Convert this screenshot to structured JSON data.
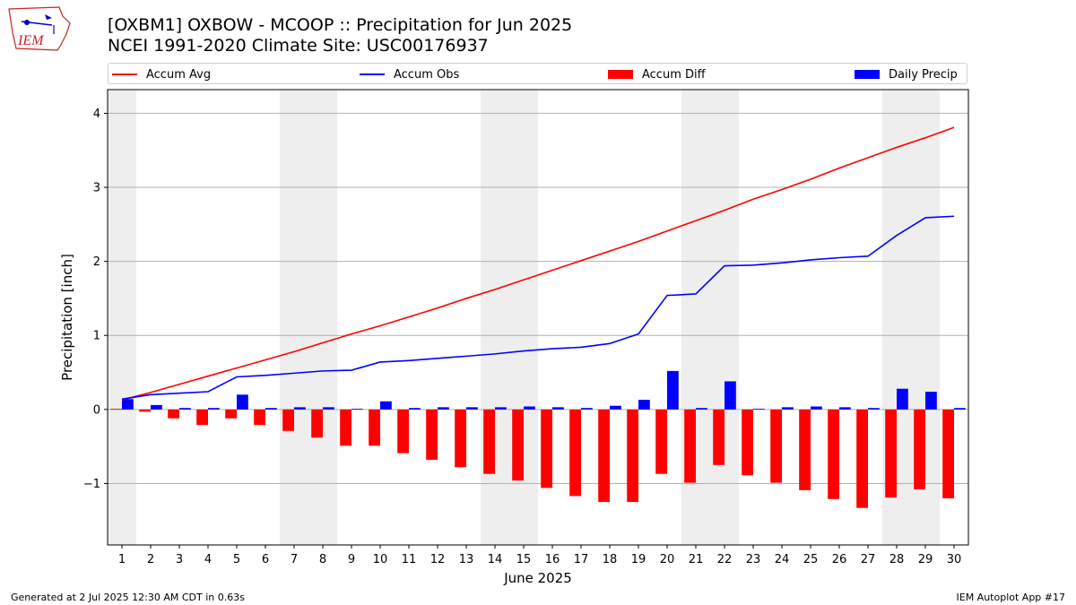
{
  "header": {
    "title_line1": "[OXBM1] OXBOW - MCOOP :: Precipitation for Jun 2025",
    "title_line2": "NCEI 1991-2020 Climate Site: USC00176937",
    "logo_text": "IEM"
  },
  "footer": {
    "left": "Generated at 2 Jul 2025 12:30 AM CDT in 0.63s",
    "right": "IEM Autoplot App #17"
  },
  "chart_data": {
    "type": "bar",
    "xlabel": "June 2025",
    "ylabel": "Precipitation [inch]",
    "ylim": [
      -1.83,
      4.32
    ],
    "xlim": [
      0.5,
      30.5
    ],
    "yticks": [
      -1,
      0,
      1,
      2,
      3,
      4
    ],
    "ytick_labels": [
      "−1",
      "0",
      "1",
      "2",
      "3",
      "4"
    ],
    "grid": "horizontal",
    "weekend_shading": [
      [
        0.5,
        1.5
      ],
      [
        6.5,
        8.5
      ],
      [
        13.5,
        15.5
      ],
      [
        20.5,
        22.5
      ],
      [
        27.5,
        29.5
      ]
    ],
    "categories": [
      "1",
      "2",
      "3",
      "4",
      "5",
      "6",
      "7",
      "8",
      "9",
      "10",
      "11",
      "12",
      "13",
      "14",
      "15",
      "16",
      "17",
      "18",
      "19",
      "20",
      "21",
      "22",
      "23",
      "24",
      "25",
      "26",
      "27",
      "28",
      "29",
      "30"
    ],
    "legend": [
      "Accum Avg",
      "Accum Obs",
      "Accum Diff",
      "Daily Precip"
    ],
    "colors": {
      "accum_avg": "#ff0000",
      "accum_obs": "#0000ff",
      "accum_diff": "#ff0000",
      "daily_precip": "#0000ff",
      "weekend": "#eeeeee",
      "grid": "#b0b0b0"
    },
    "series": [
      {
        "name": "Accum Avg",
        "kind": "line",
        "values": [
          0.13,
          0.23,
          0.34,
          0.45,
          0.56,
          0.67,
          0.78,
          0.9,
          1.02,
          1.13,
          1.25,
          1.37,
          1.5,
          1.62,
          1.75,
          1.88,
          2.01,
          2.14,
          2.27,
          2.41,
          2.55,
          2.69,
          2.84,
          2.97,
          3.11,
          3.26,
          3.4,
          3.54,
          3.67,
          3.81
        ]
      },
      {
        "name": "Accum Obs",
        "kind": "line",
        "values": [
          0.14,
          0.2,
          0.22,
          0.24,
          0.44,
          0.46,
          0.49,
          0.52,
          0.53,
          0.64,
          0.66,
          0.69,
          0.72,
          0.75,
          0.79,
          0.82,
          0.84,
          0.89,
          1.02,
          1.54,
          1.56,
          1.94,
          1.95,
          1.98,
          2.02,
          2.05,
          2.07,
          2.35,
          2.59,
          2.61
        ]
      },
      {
        "name": "Accum Diff",
        "kind": "bar",
        "values": [
          0.01,
          -0.03,
          -0.12,
          -0.21,
          -0.12,
          -0.21,
          -0.29,
          -0.38,
          -0.49,
          -0.49,
          -0.59,
          -0.68,
          -0.78,
          -0.87,
          -0.96,
          -1.06,
          -1.17,
          -1.25,
          -1.25,
          -0.87,
          -0.99,
          -0.75,
          -0.89,
          -0.99,
          -1.09,
          -1.21,
          -1.33,
          -1.19,
          -1.08,
          -1.2
        ]
      },
      {
        "name": "Daily Precip",
        "kind": "bar",
        "values": [
          0.14,
          0.06,
          0.02,
          0.02,
          0.2,
          0.02,
          0.03,
          0.03,
          0.01,
          0.11,
          0.02,
          0.03,
          0.03,
          0.03,
          0.04,
          0.03,
          0.02,
          0.05,
          0.13,
          0.52,
          0.02,
          0.38,
          0.01,
          0.03,
          0.04,
          0.03,
          0.02,
          0.28,
          0.24,
          0.02
        ]
      }
    ]
  }
}
